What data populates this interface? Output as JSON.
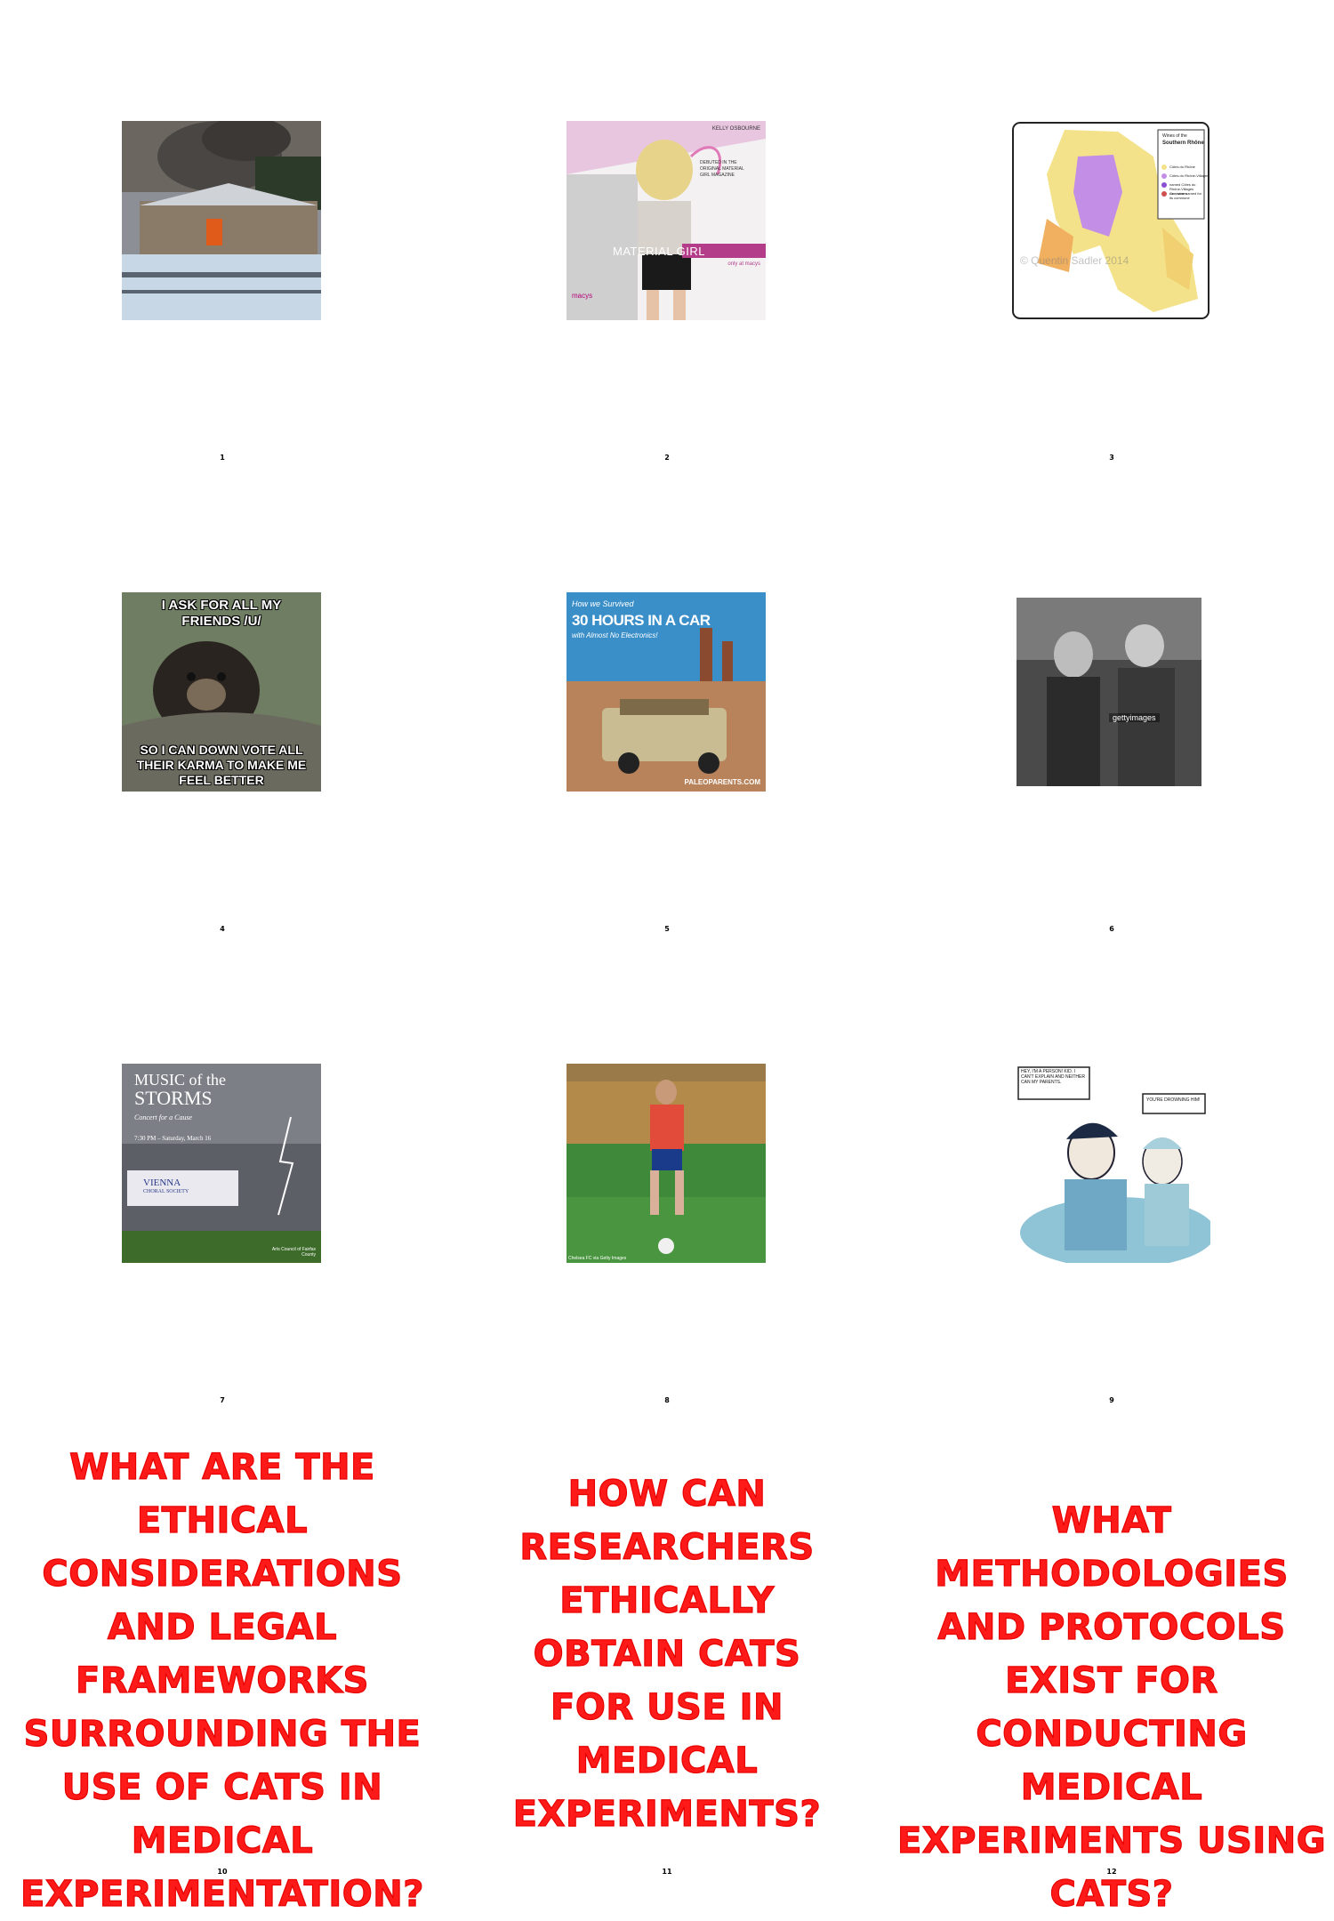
{
  "panels": [
    {
      "number": "1"
    },
    {
      "number": "2",
      "lines": [
        "KELLY OSBOURNE",
        "DEBUTED IN THE",
        "ORIGINAL MATERIAL",
        "GIRL MAGAZINE",
        "MATERIAL GIRL",
        "only at macys",
        "macys"
      ]
    },
    {
      "number": "3",
      "legend_title": "Wines of the",
      "legend_subtitle": "Southern Rhône",
      "legend_items": [
        "Côtes du Rhône",
        "Côtes du Rhône-Villages",
        "named Côtes du Rhône-Villages communes",
        "Cru, wine named for its commune"
      ],
      "watermark": "© Quentin Sadler 2014"
    },
    {
      "number": "4",
      "meme_top": "I ASK FOR ALL MY FRIENDS /U/",
      "meme_bottom": "SO I CAN DOWN VOTE ALL THEIR KARMA TO MAKE ME FEEL BETTER"
    },
    {
      "number": "5",
      "lines": [
        "How we Survived",
        "30 HOURS IN A CAR",
        "with Almost No Electronics!",
        "PALEOPARENTS.COM"
      ]
    },
    {
      "number": "6",
      "watermark": "gettyimages"
    },
    {
      "number": "7",
      "lines": [
        "MUSIC of the",
        "STORMS",
        "Concert for a Cause",
        "7:30 PM – Saturday, March 16",
        "VIENNA",
        "CHORAL SOCIETY",
        "Arts Council of Fairfax County"
      ]
    },
    {
      "number": "8",
      "caption": "Chelsea FC via Getty Images"
    },
    {
      "number": "9",
      "bubble1": "HEY, I'M A PERSON! KID. I CAN'T EXPLAIN AND NEITHER CAN MY PARENTS.",
      "bubble2": "YOU'RE DROWNING HIM!"
    },
    {
      "number": "10",
      "question": "WHAT ARE THE ETHICAL CONSIDERATIONS AND LEGAL FRAMEWORKS SURROUNDING THE USE OF CATS IN MEDICAL EXPERIMENTATION?"
    },
    {
      "number": "11",
      "question": "HOW CAN RESEARCHERS ETHICALLY OBTAIN CATS FOR USE IN MEDICAL EXPERIMENTS?"
    },
    {
      "number": "12",
      "question": "WHAT METHODOLOGIES AND PROTOCOLS EXIST FOR CONDUCTING MEDICAL EXPERIMENTS USING CATS?"
    }
  ],
  "colors": {
    "question_red": "#ff1a1a",
    "background": "#ffffff"
  }
}
